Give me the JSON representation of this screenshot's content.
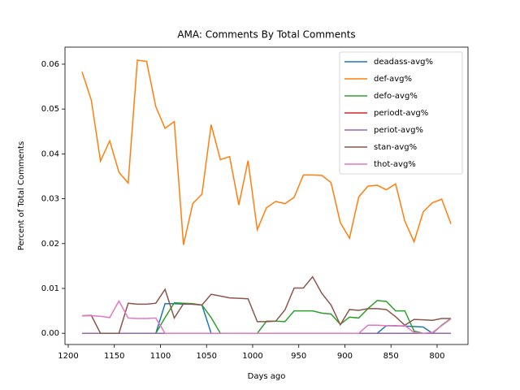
{
  "chart_data": {
    "type": "line",
    "title": "AMA: Comments By Total Comments",
    "xlabel": "Days ago",
    "ylabel": "Percent of Total Comments",
    "x": [
      1185,
      1175,
      1165,
      1155,
      1145,
      1135,
      1125,
      1115,
      1105,
      1095,
      1085,
      1075,
      1065,
      1055,
      1045,
      1035,
      1025,
      1015,
      1005,
      995,
      985,
      975,
      965,
      955,
      945,
      935,
      925,
      915,
      905,
      895,
      885,
      875,
      865,
      855,
      845,
      835,
      825,
      815,
      805,
      795,
      785
    ],
    "xlim": [
      1203.5,
      766.5
    ],
    "xticks": [
      1200,
      1150,
      1100,
      1050,
      1000,
      950,
      900,
      850,
      800
    ],
    "ylim": [
      -0.0025,
      0.0638
    ],
    "yticks": [
      {
        "value": 0,
        "label": "0.00"
      },
      {
        "value": 0.01,
        "label": "0.01"
      },
      {
        "value": 0.02,
        "label": "0.02"
      },
      {
        "value": 0.03,
        "label": "0.03"
      },
      {
        "value": 0.04,
        "label": "0.04"
      },
      {
        "value": 0.05,
        "label": "0.05"
      },
      {
        "value": 0.06,
        "label": "0.06"
      }
    ],
    "legend": "upper right",
    "series": [
      {
        "name": "deadass-avg%",
        "color": "#1f77b4",
        "values": [
          0,
          0,
          0,
          0,
          0,
          0,
          0,
          0,
          0,
          0.0066,
          0.0066,
          0.0065,
          0.0065,
          0.0063,
          0,
          0,
          0,
          0,
          0,
          0,
          0,
          0,
          0,
          0,
          0,
          0,
          0,
          0,
          0,
          0,
          0,
          0,
          0,
          0.0017,
          0.0017,
          0.0016,
          0.0015,
          0.0014,
          0,
          0,
          0
        ]
      },
      {
        "name": "def-avg%",
        "color": "#ff7f0e",
        "values": [
          0.0583,
          0.052,
          0.0384,
          0.0429,
          0.0359,
          0.0335,
          0.0609,
          0.0606,
          0.0505,
          0.0457,
          0.0472,
          0.0197,
          0.0289,
          0.031,
          0.0465,
          0.0387,
          0.0394,
          0.0286,
          0.0385,
          0.0231,
          0.028,
          0.0294,
          0.0289,
          0.0303,
          0.0353,
          0.0353,
          0.0352,
          0.0336,
          0.0247,
          0.0212,
          0.0304,
          0.0328,
          0.033,
          0.032,
          0.0333,
          0.025,
          0.0204,
          0.0271,
          0.0291,
          0.0299,
          0.0244
        ]
      },
      {
        "name": "defo-avg%",
        "color": "#2ca02c",
        "values": [
          0,
          0,
          0,
          0,
          0,
          0,
          0,
          0,
          0,
          0.0035,
          0.0068,
          0.0067,
          0.0066,
          0.0063,
          0.0035,
          0,
          0,
          0,
          0,
          0,
          0.0027,
          0.0027,
          0.0026,
          0.005,
          0.005,
          0.005,
          0.0045,
          0.0043,
          0.002,
          0.0036,
          0.0034,
          0.0055,
          0.0073,
          0.0071,
          0.005,
          0.005,
          0.0005,
          0,
          0,
          0.0018,
          0.0033
        ]
      },
      {
        "name": "periodt-avg%",
        "color": "#d62728",
        "values": [
          0,
          0,
          0,
          0,
          0,
          0,
          0,
          0,
          0,
          0,
          0,
          0,
          0,
          0,
          0,
          0,
          0,
          0,
          0,
          0,
          0,
          0,
          0,
          0,
          0,
          0,
          0,
          0,
          0,
          0,
          0,
          0,
          0,
          0,
          0,
          0,
          0,
          0,
          0,
          0,
          0
        ]
      },
      {
        "name": "periot-avg%",
        "color": "#9467bd",
        "values": [
          0,
          0,
          0,
          0,
          0,
          0,
          0,
          0,
          0,
          0,
          0,
          0,
          0,
          0,
          0,
          0,
          0,
          0,
          0,
          0,
          0,
          0,
          0,
          0,
          0,
          0,
          0,
          0,
          0,
          0,
          0,
          0,
          0,
          0,
          0,
          0,
          0,
          0,
          0,
          0,
          0
        ]
      },
      {
        "name": "stan-avg%",
        "color": "#8c564b",
        "values": [
          0.0039,
          0.004,
          0,
          0,
          0,
          0.0067,
          0.0065,
          0.0065,
          0.0067,
          0.0098,
          0.0034,
          0.0066,
          0.0065,
          0.0063,
          0.0087,
          0.0083,
          0.0079,
          0.0078,
          0.0077,
          0.0026,
          0.0026,
          0.0027,
          0.0052,
          0.0101,
          0.0101,
          0.0126,
          0.0089,
          0.0063,
          0.0019,
          0.0053,
          0.0051,
          0.0055,
          0.0055,
          0.0053,
          0.0037,
          0.0018,
          0.0031,
          0.003,
          0.0029,
          0.0033,
          0.0033
        ]
      },
      {
        "name": "thot-avg%",
        "color": "#e377c2",
        "values": [
          0.0039,
          0.0039,
          0.0038,
          0.0035,
          0.0072,
          0.0034,
          0.0033,
          0.0033,
          0.0034,
          0,
          0,
          0,
          0,
          0,
          0,
          0,
          0,
          0,
          0,
          0,
          0,
          0,
          0,
          0,
          0,
          0,
          0,
          0,
          0,
          0,
          0,
          0.0018,
          0.0018,
          0.0017,
          0.0016,
          0.0017,
          0.0002,
          0,
          0.0002,
          0.0017,
          0.0032
        ]
      }
    ]
  }
}
